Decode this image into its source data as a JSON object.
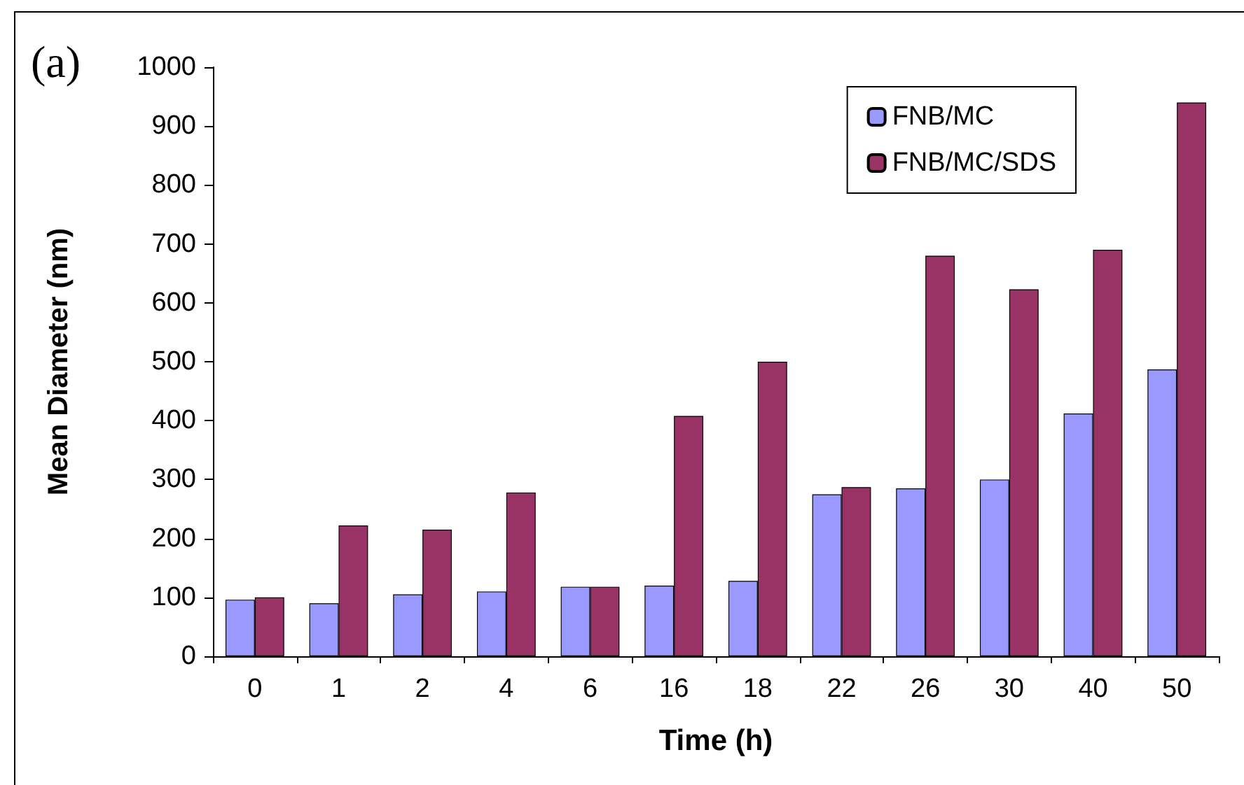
{
  "chart_data": {
    "type": "bar",
    "xlabel": "Time (h)",
    "ylabel": "Mean Diameter (nm)",
    "annotations": [
      "(a)"
    ],
    "categories": [
      "0",
      "1",
      "2",
      "4",
      "6",
      "16",
      "18",
      "22",
      "26",
      "30",
      "40",
      "50"
    ],
    "series": [
      {
        "name": "FNB/MC",
        "color": "#9999ff",
        "values": [
          96,
          90,
          105,
          110,
          118,
          120,
          128,
          275,
          285,
          300,
          412,
          487
        ]
      },
      {
        "name": "FNB/MC/SDS",
        "color": "#993366",
        "values": [
          100,
          222,
          215,
          278,
          118,
          408,
          500,
          287,
          680,
          623,
          690,
          940
        ]
      }
    ],
    "ylim": [
      0,
      1000
    ],
    "yticks": [
      0,
      100,
      200,
      300,
      400,
      500,
      600,
      700,
      800,
      900,
      1000
    ],
    "grid": false,
    "legend": "top right"
  }
}
